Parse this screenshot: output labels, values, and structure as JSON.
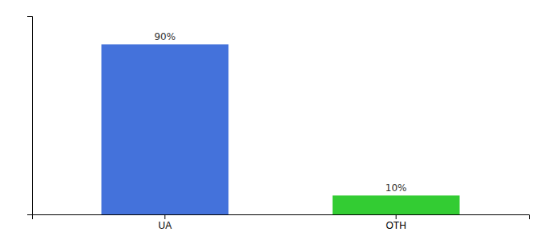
{
  "chart_data": {
    "type": "bar",
    "categories": [
      "UA",
      "OTH"
    ],
    "values": [
      90,
      10
    ],
    "value_labels": [
      "90%",
      "10%"
    ],
    "data_labels": true,
    "colors": [
      "#4472db",
      "#33cc33"
    ],
    "ylim": [
      0,
      105
    ],
    "tick_labels": "x",
    "grid": false
  }
}
